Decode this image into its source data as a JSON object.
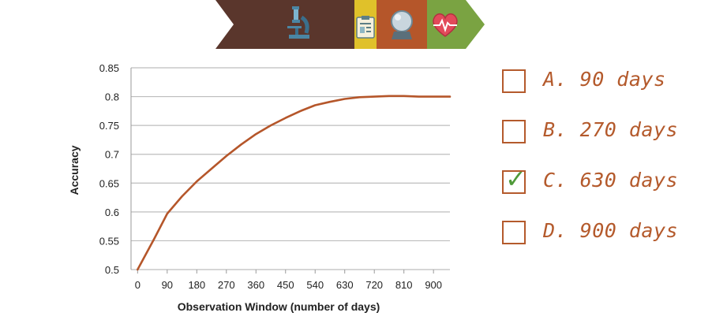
{
  "banner": {
    "colors": [
      "#5a362c",
      "#e0c12a",
      "#b5562a",
      "#7aa342"
    ],
    "icons": [
      "microscope-icon",
      "clipboard-icon",
      "crystal-ball-icon",
      "heart-rate-icon"
    ]
  },
  "chart_data": {
    "type": "line",
    "xlabel": "Observation  Window (number of days)",
    "ylabel": "Accuracy",
    "x_ticks": [
      "0",
      "90",
      "180",
      "270",
      "360",
      "450",
      "540",
      "630",
      "720",
      "810",
      "900"
    ],
    "y_ticks": [
      "0.5",
      "0.55",
      "0.6",
      "0.65",
      "0.7",
      "0.75",
      "0.8",
      "0.85"
    ],
    "xlim": [
      -20,
      950
    ],
    "ylim": [
      0.5,
      0.85
    ],
    "grid": "horizontal",
    "line_color": "#b5562a",
    "series": [
      {
        "x": [
          0,
          50,
          90,
          135,
          180,
          225,
          270,
          315,
          360,
          405,
          450,
          495,
          540,
          585,
          630,
          675,
          720,
          765,
          810,
          855,
          900,
          950
        ],
        "y": [
          0.5,
          0.553,
          0.597,
          0.627,
          0.653,
          0.675,
          0.697,
          0.717,
          0.735,
          0.75,
          0.763,
          0.775,
          0.785,
          0.791,
          0.796,
          0.799,
          0.8,
          0.801,
          0.801,
          0.8,
          0.8,
          0.8
        ]
      }
    ]
  },
  "quiz": {
    "accent": "#b45a2c",
    "check_color": "#4f9a39",
    "options": [
      {
        "label": "A. 90 days",
        "checked": false
      },
      {
        "label": "B. 270 days",
        "checked": false
      },
      {
        "label": "C. 630 days",
        "checked": true
      },
      {
        "label": "D. 900 days",
        "checked": false
      }
    ]
  }
}
